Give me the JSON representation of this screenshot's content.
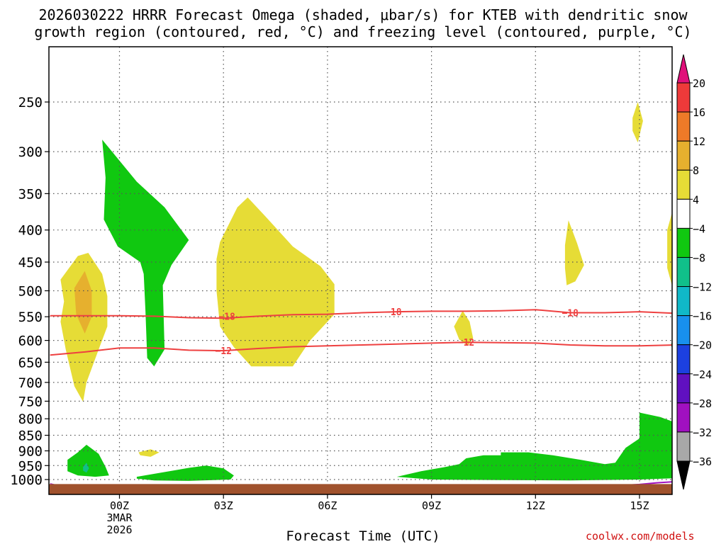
{
  "chart_data": {
    "type": "heatmap",
    "title_line1": "2026030222 HRRR Forecast Omega (shaded, μbar/s) for KTEB with dendritic snow",
    "title_line2": "growth region (contoured, red, °C) and freezing level (contoured, purple, °C)",
    "xlabel": "Forecast Time (UTC)",
    "credit": "coolwx.com/models",
    "x_ticks": [
      {
        "hour": 0,
        "label": "00Z",
        "sub1": "3MAR",
        "sub2": "2026"
      },
      {
        "hour": 3,
        "label": "03Z"
      },
      {
        "hour": 6,
        "label": "06Z"
      },
      {
        "hour": 9,
        "label": "09Z"
      },
      {
        "hour": 12,
        "label": "12Z"
      },
      {
        "hour": 15,
        "label": "15Z"
      }
    ],
    "xlim": [
      -2,
      16
    ],
    "y_ticks": [
      250,
      300,
      350,
      400,
      450,
      500,
      550,
      600,
      650,
      700,
      750,
      800,
      850,
      900,
      950,
      1000
    ],
    "ylim": [
      1025,
      200
    ],
    "grid": true,
    "colorbar": {
      "labels": [
        "20",
        "16",
        "12",
        "8",
        "4",
        "−4",
        "−8",
        "−12",
        "−16",
        "−20",
        "−24",
        "−28",
        "−32",
        "−36"
      ],
      "colors": [
        "#ee3a3a",
        "#ee7a28",
        "#e6b02e",
        "#e6dc36",
        "#ffffff",
        "#10c810",
        "#10c08a",
        "#10b8c8",
        "#1890ee",
        "#1c40e0",
        "#6010c0",
        "#a010c0",
        "#a8a8a8"
      ],
      "top_arrow_color": "#e0107a",
      "bottom_arrow_color": "#000000"
    },
    "contour_labels": [
      {
        "text": "−18",
        "hour": 3.1,
        "p": 549
      },
      {
        "text": "−18",
        "hour": 7.9,
        "p": 540
      },
      {
        "text": "−18",
        "hour": 13.0,
        "p": 542
      },
      {
        "text": "−12",
        "hour": 3.0,
        "p": 623
      },
      {
        "text": "−12",
        "hour": 10.0,
        "p": 604
      }
    ],
    "contour_minus18": [
      [
        -2,
        548
      ],
      [
        -1,
        548
      ],
      [
        0,
        548
      ],
      [
        1,
        549
      ],
      [
        2,
        552
      ],
      [
        3,
        553
      ],
      [
        4,
        549
      ],
      [
        5,
        546
      ],
      [
        6,
        545
      ],
      [
        7,
        542
      ],
      [
        8,
        540
      ],
      [
        9,
        539
      ],
      [
        10,
        539
      ],
      [
        11,
        538
      ],
      [
        12,
        536
      ],
      [
        13,
        542
      ],
      [
        14,
        542
      ],
      [
        15,
        540
      ],
      [
        16,
        543
      ]
    ],
    "contour_minus12": [
      [
        -2,
        633
      ],
      [
        -1,
        626
      ],
      [
        0,
        617
      ],
      [
        1,
        617
      ],
      [
        2,
        622
      ],
      [
        3,
        623
      ],
      [
        4,
        618
      ],
      [
        5,
        614
      ],
      [
        6,
        612
      ],
      [
        7,
        610
      ],
      [
        8,
        608
      ],
      [
        9,
        606
      ],
      [
        10,
        604
      ],
      [
        11,
        605
      ],
      [
        12,
        606
      ],
      [
        13,
        610
      ],
      [
        14,
        612
      ],
      [
        15,
        612
      ],
      [
        16,
        610
      ]
    ],
    "omega_regions": [
      {
        "value": -6,
        "points": [
          [
            -0.5,
            287
          ],
          [
            0.5,
            335
          ],
          [
            1.3,
            368
          ],
          [
            2,
            415
          ],
          [
            1.5,
            455
          ],
          [
            1.25,
            490
          ],
          [
            1.3,
            620
          ],
          [
            1.0,
            660
          ],
          [
            0.8,
            640
          ],
          [
            0.75,
            540
          ],
          [
            0.7,
            470
          ],
          [
            0.6,
            450
          ],
          [
            -0.05,
            425
          ],
          [
            -0.45,
            385
          ],
          [
            -0.4,
            330
          ]
        ]
      },
      {
        "value": 6,
        "points": [
          [
            2.9,
            418
          ],
          [
            3.4,
            368
          ],
          [
            3.7,
            355
          ],
          [
            4.2,
            380
          ],
          [
            5.0,
            425
          ],
          [
            5.8,
            457
          ],
          [
            6.2,
            488
          ],
          [
            6.2,
            545
          ],
          [
            5.5,
            600
          ],
          [
            5.0,
            660
          ],
          [
            3.8,
            660
          ],
          [
            3.3,
            615
          ],
          [
            2.9,
            570
          ],
          [
            2.8,
            500
          ],
          [
            2.8,
            445
          ]
        ]
      },
      {
        "value": 6,
        "points": [
          [
            -1.7,
            480
          ],
          [
            -1.2,
            440
          ],
          [
            -0.9,
            435
          ],
          [
            -0.5,
            470
          ],
          [
            -0.35,
            510
          ],
          [
            -0.35,
            570
          ],
          [
            -0.6,
            620
          ],
          [
            -0.95,
            700
          ],
          [
            -1.05,
            752
          ],
          [
            -1.3,
            710
          ],
          [
            -1.55,
            620
          ],
          [
            -1.7,
            560
          ],
          [
            -1.6,
            520
          ]
        ]
      },
      {
        "value": 10,
        "points": [
          [
            -1.3,
            495
          ],
          [
            -1.0,
            465
          ],
          [
            -0.8,
            500
          ],
          [
            -0.8,
            550
          ],
          [
            -1.0,
            585
          ],
          [
            -1.25,
            545
          ]
        ]
      },
      {
        "value": -6,
        "points": [
          [
            -1.5,
            930
          ],
          [
            -1.2,
            905
          ],
          [
            -0.95,
            880
          ],
          [
            -0.6,
            910
          ],
          [
            -0.4,
            955
          ],
          [
            -0.3,
            985
          ],
          [
            -0.7,
            990
          ],
          [
            -1.2,
            985
          ],
          [
            -1.5,
            970
          ]
        ]
      },
      {
        "value": -10,
        "points": [
          [
            -1.05,
            955
          ],
          [
            -0.95,
            940
          ],
          [
            -0.88,
            960
          ],
          [
            -0.95,
            975
          ],
          [
            -1.05,
            968
          ]
        ]
      },
      {
        "value": 6,
        "points": [
          [
            0.55,
            905
          ],
          [
            0.9,
            895
          ],
          [
            1.15,
            905
          ],
          [
            0.9,
            920
          ],
          [
            0.6,
            915
          ]
        ]
      },
      {
        "value": -6,
        "points": [
          [
            0.5,
            990
          ],
          [
            1.2,
            975
          ],
          [
            2.0,
            958
          ],
          [
            2.5,
            950
          ],
          [
            3.0,
            960
          ],
          [
            3.3,
            985
          ],
          [
            3.2,
            1000
          ],
          [
            2.0,
            1005
          ],
          [
            1.0,
            1003
          ],
          [
            0.5,
            997
          ]
        ]
      },
      {
        "value": 6,
        "points": [
          [
            9.65,
            570
          ],
          [
            9.9,
            538
          ],
          [
            10.1,
            560
          ],
          [
            10.2,
            595
          ],
          [
            10.05,
            612
          ],
          [
            9.8,
            598
          ]
        ]
      },
      {
        "value": 6,
        "points": [
          [
            12.85,
            423
          ],
          [
            12.95,
            386
          ],
          [
            13.2,
            420
          ],
          [
            13.4,
            455
          ],
          [
            13.15,
            483
          ],
          [
            12.9,
            490
          ],
          [
            12.85,
            460
          ]
        ]
      },
      {
        "value": 6,
        "points": [
          [
            14.8,
            265
          ],
          [
            14.95,
            250
          ],
          [
            15.1,
            268
          ],
          [
            14.95,
            290
          ],
          [
            14.8,
            278
          ]
        ]
      },
      {
        "value": 6,
        "points": [
          [
            15.8,
            400
          ],
          [
            16,
            365
          ],
          [
            16,
            505
          ],
          [
            15.8,
            460
          ]
        ]
      },
      {
        "value": -6,
        "points": [
          [
            16,
            595
          ],
          [
            16,
            625
          ],
          [
            15.9,
            610
          ]
        ]
      },
      {
        "value": -6,
        "points": [
          [
            8.0,
            990
          ],
          [
            8.7,
            970
          ],
          [
            9.4,
            955
          ],
          [
            9.8,
            945
          ],
          [
            10.0,
            925
          ],
          [
            10.5,
            915
          ],
          [
            11.0,
            915
          ],
          [
            11.0,
            905
          ],
          [
            11.8,
            905
          ],
          [
            12.5,
            915
          ],
          [
            13.3,
            930
          ],
          [
            14.0,
            945
          ],
          [
            14.3,
            940
          ],
          [
            14.6,
            890
          ],
          [
            15.0,
            860
          ],
          [
            15.0,
            782
          ],
          [
            15.6,
            795
          ],
          [
            16,
            810
          ],
          [
            16,
            995
          ],
          [
            15.0,
            1000
          ],
          [
            13.0,
            1003
          ],
          [
            11.0,
            1002
          ],
          [
            9.0,
            1000
          ]
        ]
      }
    ],
    "freezing_level": [
      [
        14.4,
        1022
      ],
      [
        15.0,
        1018
      ],
      [
        15.5,
        1012
      ],
      [
        16,
        1008
      ]
    ],
    "freezing_level_left": [
      [
        -2,
        1016
      ],
      [
        -1.8,
        1022
      ]
    ],
    "ground_level": 1022
  }
}
